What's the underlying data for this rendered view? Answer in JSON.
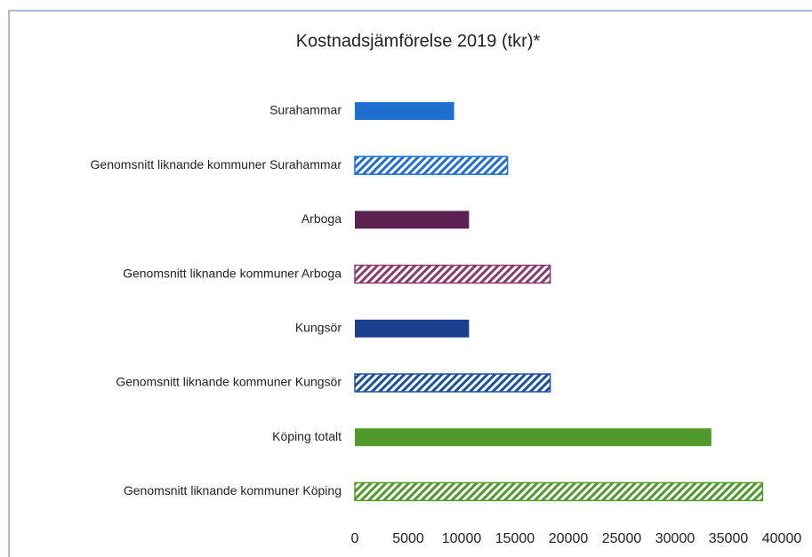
{
  "chart_data": {
    "type": "hbar",
    "title": "Kostnadsjämförelse 2019 (tkr)*",
    "categories": [
      "Surahammar",
      "Genomsnitt liknande kommuner Surahammar",
      "Arboga",
      "Genomsnitt liknande kommuner Arboga",
      "Kungsör",
      "Genomsnitt liknande kommuner Kungsör",
      "Köping totalt",
      "Genomsnitt liknande kommuner Köping"
    ],
    "values": [
      9300,
      14300,
      10700,
      18300,
      10700,
      18300,
      33400,
      38200
    ],
    "colors": [
      "#1f6fd1",
      "#1f6fd1",
      "#5b2150",
      "#8a3a6e",
      "#1b3f8f",
      "#1b4f9f",
      "#4f9a2a",
      "#4f9a2a"
    ],
    "patterns": [
      "solid",
      "hatched",
      "solid",
      "hatched",
      "solid",
      "hatched",
      "solid",
      "hatched"
    ],
    "xlim": [
      0,
      40000
    ],
    "xticks": [
      0,
      5000,
      10000,
      15000,
      20000,
      25000,
      30000,
      35000,
      40000
    ],
    "grid": false
  }
}
